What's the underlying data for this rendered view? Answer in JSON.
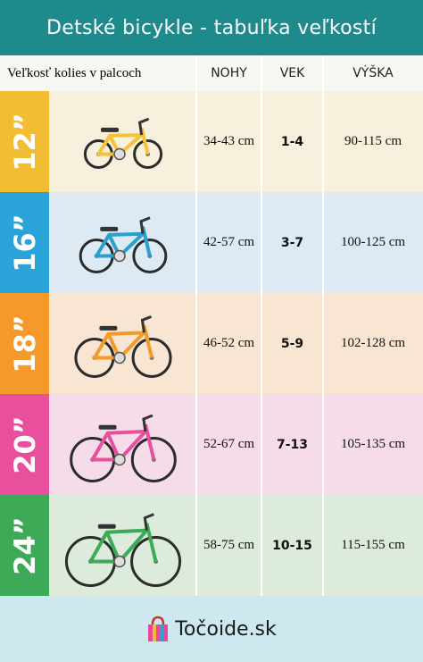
{
  "header": {
    "title": "Detské bicykle - tabuľka veľkostí"
  },
  "table": {
    "columns": [
      "Veľkosť kolies v palcoch",
      "NOHY",
      "VEK",
      "VÝŠKA"
    ],
    "rows": [
      [
        "12”",
        "34-43 cm",
        "1-4",
        "90-115 cm"
      ],
      [
        "16”",
        "42-57 cm",
        "3-7",
        "100-125 cm"
      ],
      [
        "18”",
        "46-52 cm",
        "5-9",
        "102-128 cm"
      ],
      [
        "20”",
        "52-67 cm",
        "7-13",
        "105-135 cm"
      ],
      [
        "24”",
        "58-75 cm",
        "10-15",
        "115-155 cm"
      ]
    ]
  },
  "footer": {
    "logo": "Točoide.sk"
  }
}
